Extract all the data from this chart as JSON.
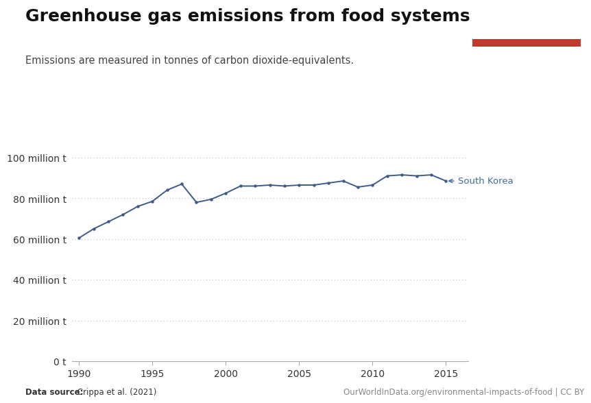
{
  "title": "Greenhouse gas emissions from food systems",
  "subtitle": "Emissions are measured in tonnes of carbon dioxide-equivalents.",
  "datasource_label": "Data source:",
  "datasource": "Crippa et al. (2021)",
  "url_label": "OurWorldInData.org/environmental-impacts-of-food | CC BY",
  "line_color": "#3d5a8a",
  "line_label": "South Korea",
  "background_color": "#ffffff",
  "years": [
    1990,
    1991,
    1992,
    1993,
    1994,
    1995,
    1996,
    1997,
    1998,
    1999,
    2000,
    2001,
    2002,
    2003,
    2004,
    2005,
    2006,
    2007,
    2008,
    2009,
    2010,
    2011,
    2012,
    2013,
    2014,
    2015
  ],
  "values": [
    60.5,
    65.0,
    68.5,
    72.0,
    76.0,
    78.5,
    84.0,
    87.0,
    78.0,
    79.5,
    82.5,
    86.0,
    86.0,
    86.5,
    86.0,
    86.5,
    86.5,
    87.5,
    88.5,
    85.5,
    86.5,
    91.0,
    91.5,
    91.0,
    91.5,
    88.5
  ],
  "yticks": [
    0,
    20,
    40,
    60,
    80,
    100
  ],
  "ytick_labels": [
    "0 t",
    "20 million t",
    "40 million t",
    "60 million t",
    "80 million t",
    "100 million t"
  ],
  "xticks": [
    1990,
    1995,
    2000,
    2005,
    2010,
    2015
  ],
  "xlim": [
    1989.5,
    2016.5
  ],
  "ylim": [
    0,
    105
  ],
  "title_fontsize": 18,
  "subtitle_fontsize": 10.5,
  "tick_fontsize": 10,
  "annotation_color": "#3d6b9e",
  "owid_box_bg": "#1a3a5c",
  "owid_text_color": "#ffffff",
  "owid_red": "#c0392b"
}
